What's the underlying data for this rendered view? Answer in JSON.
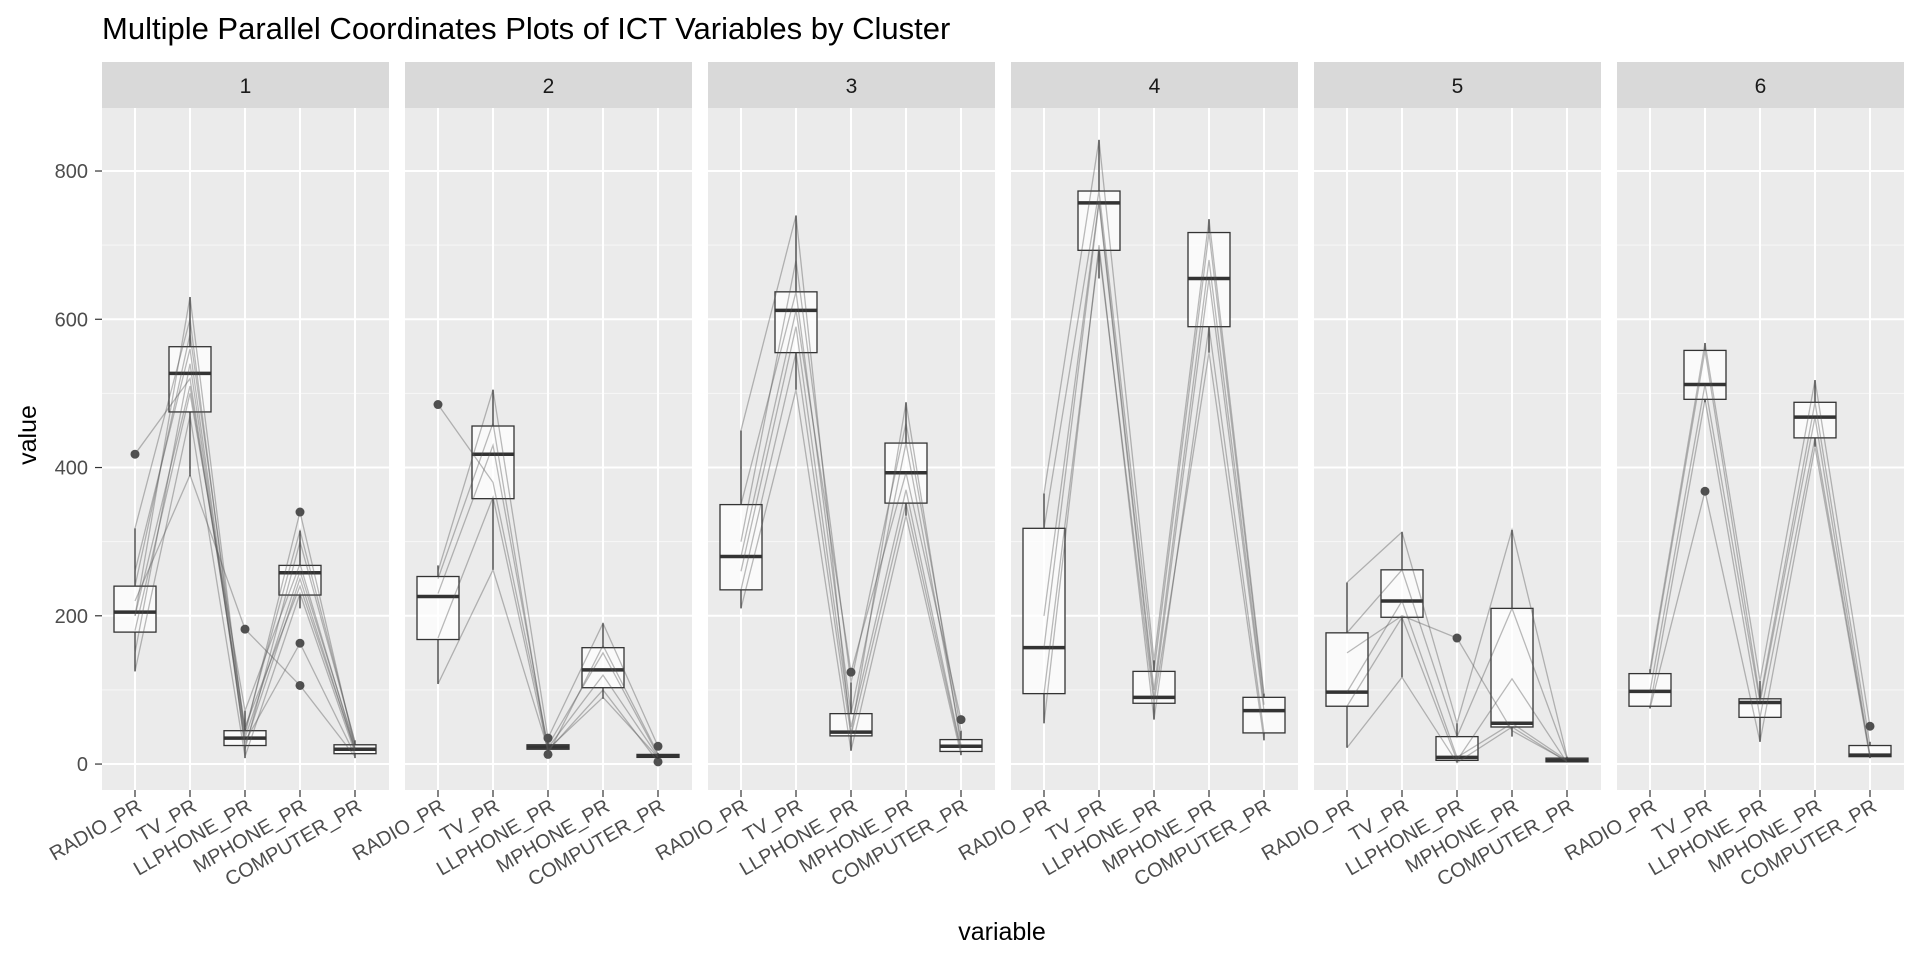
{
  "chart_data": {
    "type": "parallel-coordinates-boxplot",
    "title": "Multiple Parallel Coordinates Plots of ICT Variables by Cluster",
    "xlabel": "variable",
    "ylabel": "value",
    "ylim": [
      -35,
      885
    ],
    "y_ticks": [
      0,
      200,
      400,
      600,
      800
    ],
    "y_tick_labels": [
      "0",
      "200",
      "400",
      "600",
      "800"
    ],
    "grid": true,
    "variables": [
      "RADIO_PR",
      "TV_PR",
      "LLPHONE_PR",
      "MPHONE_PR",
      "COMPUTER_PR"
    ],
    "panels": [
      {
        "label": "1",
        "boxes": [
          {
            "variable": "RADIO_PR",
            "low": 125,
            "q1": 178,
            "median": 205,
            "q3": 240,
            "high": 318,
            "outliers": [
              418
            ]
          },
          {
            "variable": "TV_PR",
            "low": 388,
            "q1": 475,
            "median": 527,
            "q3": 563,
            "high": 630,
            "outliers": []
          },
          {
            "variable": "LLPHONE_PR",
            "low": 8,
            "q1": 25,
            "median": 35,
            "q3": 45,
            "high": 72,
            "outliers": [
              182
            ]
          },
          {
            "variable": "MPHONE_PR",
            "low": 210,
            "q1": 228,
            "median": 258,
            "q3": 268,
            "high": 315,
            "outliers": [
              340,
              163,
              106
            ]
          },
          {
            "variable": "COMPUTER_PR",
            "low": 8,
            "q1": 14,
            "median": 20,
            "q3": 26,
            "high": 32,
            "outliers": []
          }
        ],
        "lines": [
          [
            418,
            520,
            40,
            340,
            22
          ],
          [
            125,
            470,
            10,
            230,
            15
          ],
          [
            200,
            630,
            35,
            260,
            25
          ],
          [
            260,
            560,
            25,
            250,
            18
          ],
          [
            318,
            600,
            20,
            300,
            30
          ],
          [
            180,
            500,
            72,
            270,
            20
          ],
          [
            150,
            540,
            30,
            163,
            12
          ],
          [
            220,
            390,
            182,
            106,
            10
          ],
          [
            240,
            580,
            45,
            315,
            28
          ],
          [
            200,
            510,
            50,
            240,
            20
          ]
        ]
      },
      {
        "label": "2",
        "boxes": [
          {
            "variable": "RADIO_PR",
            "low": 108,
            "q1": 168,
            "median": 226,
            "q3": 253,
            "high": 268,
            "outliers": [
              485
            ]
          },
          {
            "variable": "TV_PR",
            "low": 262,
            "q1": 358,
            "median": 418,
            "q3": 456,
            "high": 505,
            "outliers": []
          },
          {
            "variable": "LLPHONE_PR",
            "low": 18,
            "q1": 20,
            "median": 23,
            "q3": 26,
            "high": 30,
            "outliers": [
              35,
              13
            ]
          },
          {
            "variable": "MPHONE_PR",
            "low": 88,
            "q1": 103,
            "median": 127,
            "q3": 157,
            "high": 190,
            "outliers": []
          },
          {
            "variable": "COMPUTER_PR",
            "low": 7,
            "q1": 9,
            "median": 11,
            "q3": 13,
            "high": 15,
            "outliers": [
              24,
              3
            ]
          }
        ],
        "lines": [
          [
            485,
            380,
            25,
            150,
            12
          ],
          [
            108,
            262,
            20,
            90,
            9
          ],
          [
            260,
            505,
            35,
            190,
            24
          ],
          [
            230,
            430,
            22,
            120,
            10
          ],
          [
            170,
            360,
            18,
            100,
            3
          ],
          [
            250,
            460,
            13,
            160,
            14
          ]
        ]
      },
      {
        "label": "3",
        "boxes": [
          {
            "variable": "RADIO_PR",
            "low": 210,
            "q1": 235,
            "median": 280,
            "q3": 350,
            "high": 450,
            "outliers": []
          },
          {
            "variable": "TV_PR",
            "low": 505,
            "q1": 555,
            "median": 612,
            "q3": 637,
            "high": 740,
            "outliers": []
          },
          {
            "variable": "LLPHONE_PR",
            "low": 18,
            "q1": 38,
            "median": 43,
            "q3": 68,
            "high": 110,
            "outliers": [
              124
            ]
          },
          {
            "variable": "MPHONE_PR",
            "low": 335,
            "q1": 352,
            "median": 393,
            "q3": 433,
            "high": 488,
            "outliers": []
          },
          {
            "variable": "COMPUTER_PR",
            "low": 12,
            "q1": 17,
            "median": 24,
            "q3": 33,
            "high": 45,
            "outliers": [
              60
            ]
          }
        ],
        "lines": [
          [
            450,
            740,
            40,
            488,
            25
          ],
          [
            210,
            505,
            18,
            335,
            12
          ],
          [
            280,
            612,
            124,
            393,
            60
          ],
          [
            350,
            637,
            68,
            433,
            33
          ],
          [
            235,
            555,
            38,
            352,
            17
          ],
          [
            300,
            680,
            110,
            460,
            45
          ],
          [
            260,
            590,
            50,
            370,
            20
          ]
        ]
      },
      {
        "label": "4",
        "boxes": [
          {
            "variable": "RADIO_PR",
            "low": 55,
            "q1": 95,
            "median": 157,
            "q3": 318,
            "high": 365,
            "outliers": []
          },
          {
            "variable": "TV_PR",
            "low": 655,
            "q1": 693,
            "median": 757,
            "q3": 773,
            "high": 842,
            "outliers": []
          },
          {
            "variable": "LLPHONE_PR",
            "low": 60,
            "q1": 82,
            "median": 90,
            "q3": 125,
            "high": 140,
            "outliers": []
          },
          {
            "variable": "MPHONE_PR",
            "low": 555,
            "q1": 590,
            "median": 655,
            "q3": 717,
            "high": 735,
            "outliers": []
          },
          {
            "variable": "COMPUTER_PR",
            "low": 32,
            "q1": 42,
            "median": 72,
            "q3": 90,
            "high": 95,
            "outliers": []
          }
        ],
        "lines": [
          [
            55,
            700,
            60,
            590,
            42
          ],
          [
            365,
            842,
            140,
            735,
            95
          ],
          [
            157,
            757,
            90,
            655,
            72
          ],
          [
            318,
            773,
            125,
            717,
            90
          ],
          [
            95,
            693,
            82,
            555,
            32
          ],
          [
            200,
            760,
            100,
            680,
            80
          ]
        ]
      },
      {
        "label": "5",
        "boxes": [
          {
            "variable": "RADIO_PR",
            "low": 22,
            "q1": 78,
            "median": 97,
            "q3": 177,
            "high": 245,
            "outliers": []
          },
          {
            "variable": "TV_PR",
            "low": 117,
            "q1": 198,
            "median": 220,
            "q3": 262,
            "high": 313,
            "outliers": []
          },
          {
            "variable": "LLPHONE_PR",
            "low": 2,
            "q1": 5,
            "median": 9,
            "q3": 37,
            "high": 55,
            "outliers": [
              170
            ]
          },
          {
            "variable": "MPHONE_PR",
            "low": 37,
            "q1": 50,
            "median": 55,
            "q3": 210,
            "high": 316,
            "outliers": []
          },
          {
            "variable": "COMPUTER_PR",
            "low": 2,
            "q1": 3,
            "median": 5,
            "q3": 8,
            "high": 10,
            "outliers": []
          }
        ],
        "lines": [
          [
            22,
            117,
            2,
            50,
            3
          ],
          [
            245,
            313,
            55,
            316,
            10
          ],
          [
            97,
            220,
            9,
            55,
            5
          ],
          [
            177,
            262,
            37,
            210,
            8
          ],
          [
            150,
            200,
            170,
            45,
            4
          ],
          [
            78,
            198,
            5,
            115,
            2
          ]
        ]
      },
      {
        "label": "6",
        "boxes": [
          {
            "variable": "RADIO_PR",
            "low": 75,
            "q1": 78,
            "median": 98,
            "q3": 122,
            "high": 128,
            "outliers": []
          },
          {
            "variable": "TV_PR",
            "low": 488,
            "q1": 492,
            "median": 512,
            "q3": 558,
            "high": 568,
            "outliers": [
              368
            ]
          },
          {
            "variable": "LLPHONE_PR",
            "low": 30,
            "q1": 63,
            "median": 83,
            "q3": 88,
            "high": 112,
            "outliers": []
          },
          {
            "variable": "MPHONE_PR",
            "low": 428,
            "q1": 440,
            "median": 468,
            "q3": 488,
            "high": 518,
            "outliers": []
          },
          {
            "variable": "COMPUTER_PR",
            "low": 8,
            "q1": 10,
            "median": 12,
            "q3": 25,
            "high": 30,
            "outliers": [
              51
            ]
          }
        ],
        "lines": [
          [
            75,
            368,
            30,
            428,
            8
          ],
          [
            128,
            568,
            112,
            518,
            51
          ],
          [
            98,
            512,
            83,
            468,
            12
          ],
          [
            122,
            558,
            88,
            488,
            25
          ],
          [
            78,
            492,
            63,
            440,
            10
          ]
        ]
      }
    ]
  }
}
